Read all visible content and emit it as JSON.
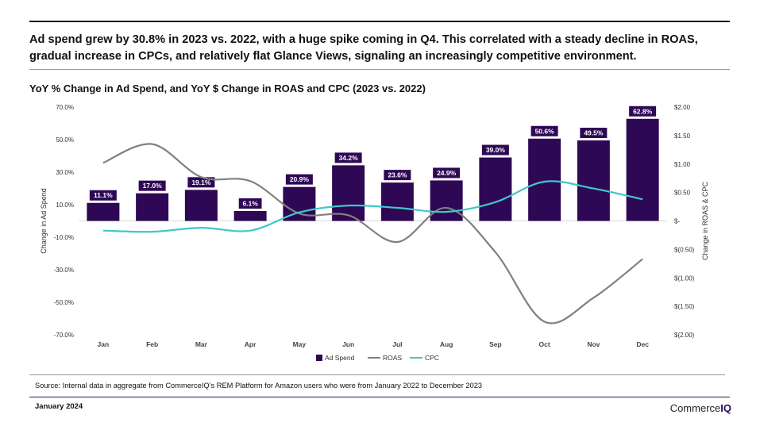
{
  "headline": "Ad spend grew by 30.8% in 2023 vs. 2022, with a huge spike coming in Q4. This correlated with a steady decline in ROAS, gradual increase in CPCs, and relatively flat Glance Views, signaling an increasingly competitive environment.",
  "chart_data": {
    "type": "bar",
    "title": "YoY % Change in Ad Spend, and YoY $ Change in ROAS and CPC (2023 vs. 2022)",
    "categories": [
      "Jan",
      "Feb",
      "Mar",
      "Apr",
      "May",
      "Jun",
      "Jul",
      "Aug",
      "Sep",
      "Oct",
      "Nov",
      "Dec"
    ],
    "ylabel": "Change in Ad Spend",
    "y2label": "Change in ROAS & CPC",
    "ylim": [
      -70,
      70
    ],
    "y2lim": [
      -2,
      2
    ],
    "y_ticks": [
      "70.0%",
      "50.0%",
      "30.0%",
      "10.0%",
      "-10.0%",
      "-30.0%",
      "-50.0%",
      "-70.0%"
    ],
    "y_tick_values": [
      70,
      50,
      30,
      10,
      -10,
      -30,
      -50,
      -70
    ],
    "y2_ticks": [
      "$2.00",
      "$1.50",
      "$1.00",
      "$0.50",
      "$-",
      "$(0.50)",
      "$(1.00)",
      "$(1.50)",
      "$(2.00)"
    ],
    "y2_tick_values": [
      2,
      1.5,
      1,
      0.5,
      0,
      -0.5,
      -1,
      -1.5,
      -2
    ],
    "series": [
      {
        "name": "Ad Spend",
        "type": "bar",
        "axis": "left",
        "color": "#2e0854",
        "values": [
          11.1,
          17.0,
          19.1,
          6.1,
          20.9,
          34.2,
          23.6,
          24.9,
          39.0,
          50.6,
          49.5,
          62.8
        ],
        "labels": [
          "11.1%",
          "17.0%",
          "19.1%",
          "6.1%",
          "20.9%",
          "34.2%",
          "23.6%",
          "24.9%",
          "39.0%",
          "50.6%",
          "49.5%",
          "62.8%"
        ]
      },
      {
        "name": "ROAS",
        "type": "line",
        "axis": "right",
        "color": "#808080",
        "values": [
          1.02,
          1.35,
          0.77,
          0.7,
          0.13,
          0.1,
          -0.37,
          0.23,
          -0.55,
          -1.77,
          -1.35,
          -0.67
        ]
      },
      {
        "name": "CPC",
        "type": "line",
        "axis": "right",
        "color": "#3fc8c8",
        "values": [
          -0.17,
          -0.19,
          -0.12,
          -0.17,
          0.15,
          0.27,
          0.23,
          0.16,
          0.33,
          0.69,
          0.57,
          0.38
        ]
      }
    ],
    "legend": "bottom",
    "grid": false
  },
  "source": "Source: Internal data in aggregate from CommerceIQ’s REM Platform for Amazon users who were from January 2022 to December 2023",
  "footer": {
    "date": "January 2024",
    "brand_prefix": "Commerce",
    "brand_suffix": "IQ"
  }
}
